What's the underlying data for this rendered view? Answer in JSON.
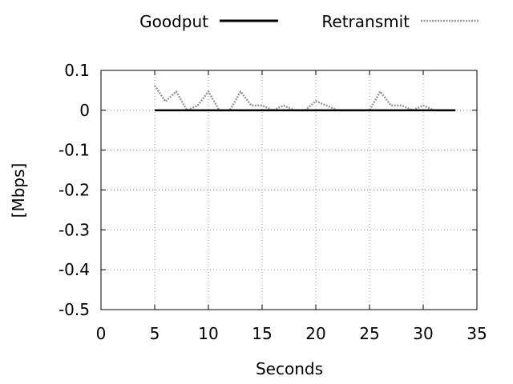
{
  "chart_data": {
    "type": "line",
    "title": "",
    "xlabel": "Seconds",
    "ylabel": "[Mbps]",
    "xlim": [
      0,
      35
    ],
    "ylim": [
      -0.5,
      0.1
    ],
    "x_ticks": [
      "0",
      "5",
      "10",
      "15",
      "20",
      "25",
      "30",
      "35"
    ],
    "x_tick_values": [
      0,
      5,
      10,
      15,
      20,
      25,
      30,
      35
    ],
    "y_ticks": [
      "0.1",
      "0",
      "-0.1",
      "-0.2",
      "-0.3",
      "-0.4",
      "-0.5"
    ],
    "y_tick_values": [
      0.1,
      0,
      -0.1,
      -0.2,
      -0.3,
      -0.4,
      -0.5
    ],
    "grid": true,
    "legend_position": "top",
    "series": [
      {
        "name": "Goodput",
        "color": "#000000",
        "style": "solid",
        "x": [
          5,
          6,
          7,
          8,
          9,
          10,
          11,
          12,
          13,
          14,
          15,
          16,
          17,
          18,
          19,
          20,
          21,
          22,
          23,
          24,
          25,
          26,
          27,
          28,
          29,
          30,
          31,
          32,
          33
        ],
        "values": [
          0,
          0,
          0,
          0,
          0,
          0,
          0,
          0,
          0,
          0,
          0,
          0,
          0,
          0,
          0,
          0,
          0,
          0,
          0,
          0,
          0,
          0,
          0,
          0,
          0,
          0,
          0,
          0,
          0
        ]
      },
      {
        "name": "Retransmit",
        "color": "#999999",
        "style": "dotted",
        "x": [
          5,
          6,
          7,
          8,
          9,
          10,
          11,
          12,
          13,
          14,
          15,
          16,
          17,
          18,
          19,
          20,
          21,
          22,
          23,
          24,
          25,
          26,
          27,
          28,
          29,
          30,
          31,
          32,
          33
        ],
        "values": [
          0.062,
          0.022,
          0.047,
          0.0,
          0.012,
          0.047,
          0.0,
          0.0,
          0.047,
          0.012,
          0.012,
          0.0,
          0.012,
          0.0,
          0.0,
          0.023,
          0.012,
          0.0,
          0.0,
          0.0,
          0.0,
          0.047,
          0.012,
          0.012,
          0.0,
          0.012,
          0.0,
          0.0,
          0.0
        ]
      }
    ]
  }
}
